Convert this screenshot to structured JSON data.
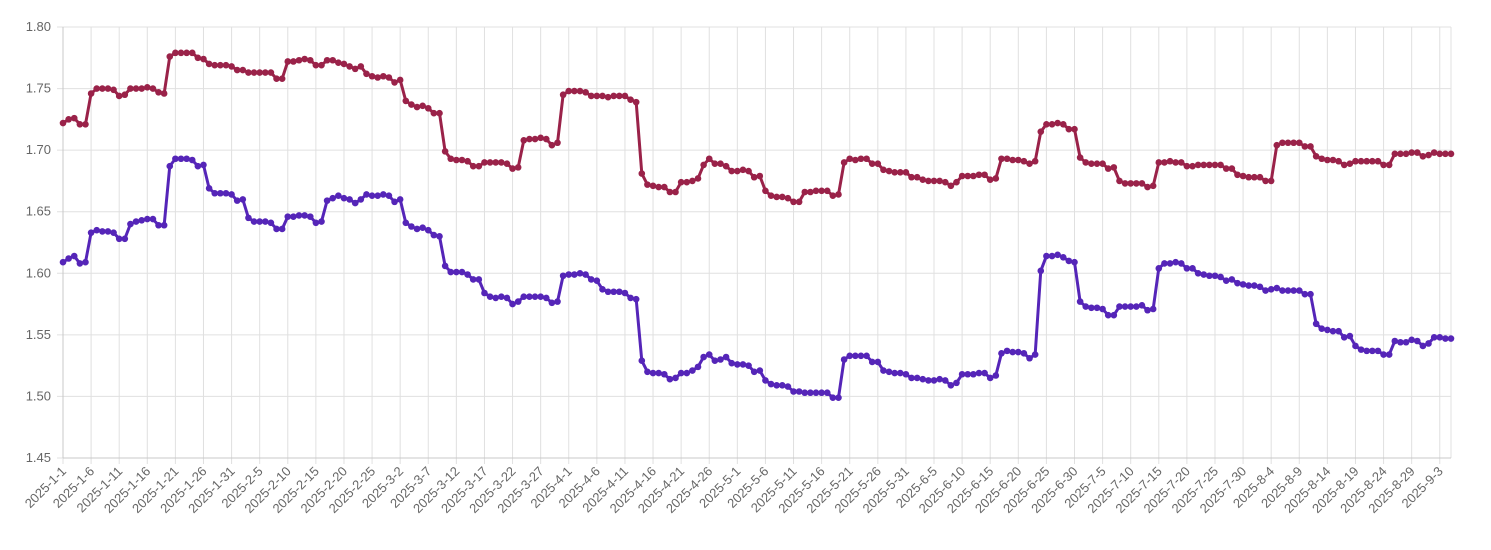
{
  "chart_data": {
    "type": "line",
    "title": "",
    "xlabel": "",
    "ylabel": "",
    "ylim": [
      1.45,
      1.8
    ],
    "y_ticks": [
      "1.45",
      "1.50",
      "1.55",
      "1.60",
      "1.65",
      "1.70",
      "1.75",
      "1.80"
    ],
    "grid": true,
    "legend": "none",
    "x_start": "2025-1-1",
    "x_tick_labels": [
      "2025-1-1",
      "2025-1-6",
      "2025-1-11",
      "2025-1-16",
      "2025-1-21",
      "2025-1-26",
      "2025-1-31",
      "2025-2-5",
      "2025-2-10",
      "2025-2-15",
      "2025-2-20",
      "2025-2-25",
      "2025-3-2",
      "2025-3-7",
      "2025-3-12",
      "2025-3-17",
      "2025-3-22",
      "2025-3-27",
      "2025-4-1",
      "2025-4-6",
      "2025-4-11",
      "2025-4-16",
      "2025-4-21",
      "2025-4-26",
      "2025-5-1",
      "2025-5-6",
      "2025-5-11",
      "2025-5-16",
      "2025-5-21",
      "2025-5-26",
      "2025-5-31",
      "2025-6-5",
      "2025-6-10",
      "2025-6-15",
      "2025-6-20",
      "2025-6-25",
      "2025-6-30",
      "2025-7-5",
      "2025-7-10",
      "2025-7-15",
      "2025-7-20",
      "2025-7-25",
      "2025-7-30",
      "2025-8-4",
      "2025-8-9",
      "2025-8-14",
      "2025-8-19",
      "2025-8-24",
      "2025-8-29",
      "2025-9-3"
    ],
    "series": [
      {
        "color": "#9a2249",
        "values": [
          1.722,
          1.725,
          1.726,
          1.721,
          1.721,
          1.746,
          1.75,
          1.75,
          1.75,
          1.749,
          1.744,
          1.745,
          1.75,
          1.75,
          1.75,
          1.751,
          1.75,
          1.747,
          1.746,
          1.776,
          1.779,
          1.779,
          1.779,
          1.779,
          1.775,
          1.774,
          1.77,
          1.769,
          1.769,
          1.769,
          1.768,
          1.765,
          1.765,
          1.763,
          1.763,
          1.763,
          1.763,
          1.763,
          1.758,
          1.758,
          1.772,
          1.772,
          1.773,
          1.774,
          1.773,
          1.769,
          1.769,
          1.773,
          1.773,
          1.771,
          1.77,
          1.768,
          1.766,
          1.768,
          1.762,
          1.76,
          1.759,
          1.76,
          1.759,
          1.755,
          1.757,
          1.74,
          1.737,
          1.735,
          1.736,
          1.734,
          1.73,
          1.73,
          1.699,
          1.693,
          1.692,
          1.692,
          1.691,
          1.687,
          1.687,
          1.69,
          1.69,
          1.69,
          1.69,
          1.689,
          1.685,
          1.686,
          1.708,
          1.709,
          1.709,
          1.71,
          1.709,
          1.704,
          1.706,
          1.745,
          1.748,
          1.748,
          1.748,
          1.747,
          1.744,
          1.744,
          1.744,
          1.743,
          1.744,
          1.744,
          1.744,
          1.741,
          1.739,
          1.681,
          1.672,
          1.671,
          1.67,
          1.67,
          1.666,
          1.666,
          1.674,
          1.674,
          1.675,
          1.677,
          1.688,
          1.693,
          1.689,
          1.689,
          1.687,
          1.683,
          1.683,
          1.684,
          1.683,
          1.678,
          1.679,
          1.667,
          1.663,
          1.662,
          1.662,
          1.661,
          1.658,
          1.658,
          1.666,
          1.666,
          1.667,
          1.667,
          1.667,
          1.663,
          1.664,
          1.69,
          1.693,
          1.692,
          1.693,
          1.693,
          1.689,
          1.689,
          1.684,
          1.683,
          1.682,
          1.682,
          1.682,
          1.678,
          1.678,
          1.676,
          1.675,
          1.675,
          1.675,
          1.674,
          1.671,
          1.674,
          1.679,
          1.679,
          1.679,
          1.68,
          1.68,
          1.676,
          1.677,
          1.693,
          1.693,
          1.692,
          1.692,
          1.691,
          1.689,
          1.691,
          1.715,
          1.721,
          1.721,
          1.722,
          1.721,
          1.717,
          1.717,
          1.694,
          1.69,
          1.689,
          1.689,
          1.689,
          1.685,
          1.686,
          1.675,
          1.673,
          1.673,
          1.673,
          1.673,
          1.67,
          1.671,
          1.69,
          1.69,
          1.691,
          1.69,
          1.69,
          1.687,
          1.687,
          1.688,
          1.688,
          1.688,
          1.688,
          1.688,
          1.685,
          1.685,
          1.68,
          1.679,
          1.678,
          1.678,
          1.678,
          1.675,
          1.675,
          1.704,
          1.706,
          1.706,
          1.706,
          1.706,
          1.703,
          1.703,
          1.695,
          1.693,
          1.692,
          1.692,
          1.691,
          1.688,
          1.689,
          1.691,
          1.691,
          1.691,
          1.691,
          1.691,
          1.688,
          1.688,
          1.697,
          1.697,
          1.697,
          1.698,
          1.698,
          1.695,
          1.696,
          1.698,
          1.697,
          1.697,
          1.697
        ]
      },
      {
        "color": "#5525b8",
        "values": [
          1.609,
          1.612,
          1.614,
          1.608,
          1.609,
          1.633,
          1.635,
          1.634,
          1.634,
          1.633,
          1.628,
          1.628,
          1.64,
          1.642,
          1.643,
          1.644,
          1.644,
          1.639,
          1.639,
          1.687,
          1.693,
          1.693,
          1.693,
          1.692,
          1.687,
          1.688,
          1.669,
          1.665,
          1.665,
          1.665,
          1.664,
          1.659,
          1.66,
          1.645,
          1.642,
          1.642,
          1.642,
          1.641,
          1.636,
          1.636,
          1.646,
          1.646,
          1.647,
          1.647,
          1.646,
          1.641,
          1.642,
          1.659,
          1.661,
          1.663,
          1.661,
          1.66,
          1.657,
          1.66,
          1.664,
          1.663,
          1.663,
          1.664,
          1.663,
          1.658,
          1.66,
          1.641,
          1.638,
          1.636,
          1.637,
          1.635,
          1.631,
          1.63,
          1.606,
          1.601,
          1.601,
          1.601,
          1.599,
          1.595,
          1.595,
          1.584,
          1.581,
          1.58,
          1.581,
          1.58,
          1.575,
          1.577,
          1.581,
          1.581,
          1.581,
          1.581,
          1.58,
          1.576,
          1.577,
          1.598,
          1.599,
          1.599,
          1.6,
          1.599,
          1.595,
          1.594,
          1.587,
          1.585,
          1.585,
          1.585,
          1.584,
          1.58,
          1.579,
          1.529,
          1.52,
          1.519,
          1.519,
          1.518,
          1.514,
          1.515,
          1.519,
          1.519,
          1.521,
          1.524,
          1.532,
          1.534,
          1.529,
          1.53,
          1.532,
          1.527,
          1.526,
          1.526,
          1.525,
          1.52,
          1.521,
          1.513,
          1.51,
          1.509,
          1.509,
          1.508,
          1.504,
          1.504,
          1.503,
          1.503,
          1.503,
          1.503,
          1.503,
          1.499,
          1.499,
          1.53,
          1.533,
          1.533,
          1.533,
          1.533,
          1.528,
          1.528,
          1.521,
          1.52,
          1.519,
          1.519,
          1.518,
          1.515,
          1.515,
          1.514,
          1.513,
          1.513,
          1.514,
          1.513,
          1.509,
          1.511,
          1.518,
          1.518,
          1.518,
          1.519,
          1.519,
          1.515,
          1.517,
          1.535,
          1.537,
          1.536,
          1.536,
          1.535,
          1.531,
          1.534,
          1.602,
          1.614,
          1.614,
          1.615,
          1.613,
          1.61,
          1.609,
          1.577,
          1.573,
          1.572,
          1.572,
          1.571,
          1.566,
          1.566,
          1.573,
          1.573,
          1.573,
          1.573,
          1.574,
          1.57,
          1.571,
          1.604,
          1.608,
          1.608,
          1.609,
          1.608,
          1.604,
          1.604,
          1.6,
          1.599,
          1.598,
          1.598,
          1.597,
          1.594,
          1.595,
          1.592,
          1.591,
          1.59,
          1.59,
          1.589,
          1.586,
          1.587,
          1.588,
          1.586,
          1.586,
          1.586,
          1.586,
          1.583,
          1.583,
          1.559,
          1.555,
          1.554,
          1.553,
          1.553,
          1.548,
          1.549,
          1.541,
          1.538,
          1.537,
          1.537,
          1.537,
          1.534,
          1.534,
          1.545,
          1.544,
          1.544,
          1.546,
          1.545,
          1.541,
          1.543,
          1.548,
          1.548,
          1.547,
          1.547
        ]
      }
    ]
  }
}
